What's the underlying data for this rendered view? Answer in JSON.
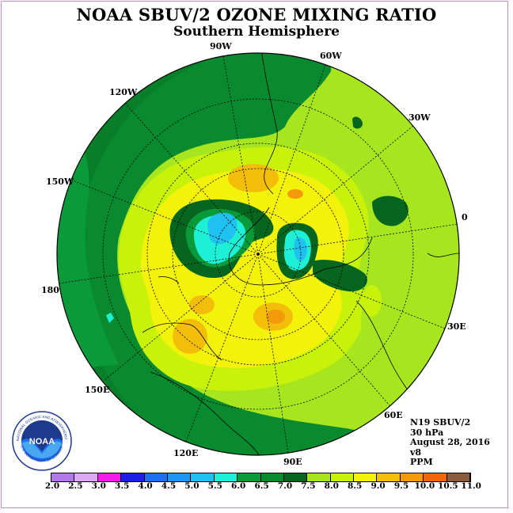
{
  "header": {
    "title": "NOAA SBUV/2 OZONE MIXING RATIO",
    "subtitle": "Southern Hemisphere"
  },
  "longitude_labels": [
    "90W",
    "60W",
    "30W",
    "0",
    "30E",
    "60E",
    "90E",
    "120E",
    "150E",
    "180",
    "150W",
    "120W"
  ],
  "metadata": {
    "satellite": "N19 SBUV/2",
    "level": "30 hPa",
    "date": "August 28, 2016",
    "version": "v8",
    "units": "PPM"
  },
  "colorbar": {
    "ticks": [
      "2.0",
      "2.5",
      "3.0",
      "3.5",
      "4.0",
      "4.5",
      "5.0",
      "5.5",
      "6.0",
      "6.5",
      "7.0",
      "7.5",
      "8.0",
      "8.5",
      "9.0",
      "9.5",
      "10.0",
      "10.5",
      "11.0"
    ],
    "colors": [
      "#b27ae8",
      "#dba8f2",
      "#f21ee8",
      "#1e1ee6",
      "#1e6ef0",
      "#1e96f0",
      "#1ec1f0",
      "#1ef0d6",
      "#0a9a3a",
      "#0a8a2e",
      "#066620",
      "#a7e61e",
      "#c8f20a",
      "#f2f20a",
      "#f2be0a",
      "#f29a0a",
      "#f2660a",
      "#f20a0a",
      "#8c5a3c"
    ]
  },
  "logo": {
    "text": "NOAA",
    "ring_text": "NATIONAL OCEANIC AND ATMOSPHERIC ADMINISTRATION",
    "ring_text_bottom": "U.S. DEPARTMENT OF COMMERCE"
  }
}
